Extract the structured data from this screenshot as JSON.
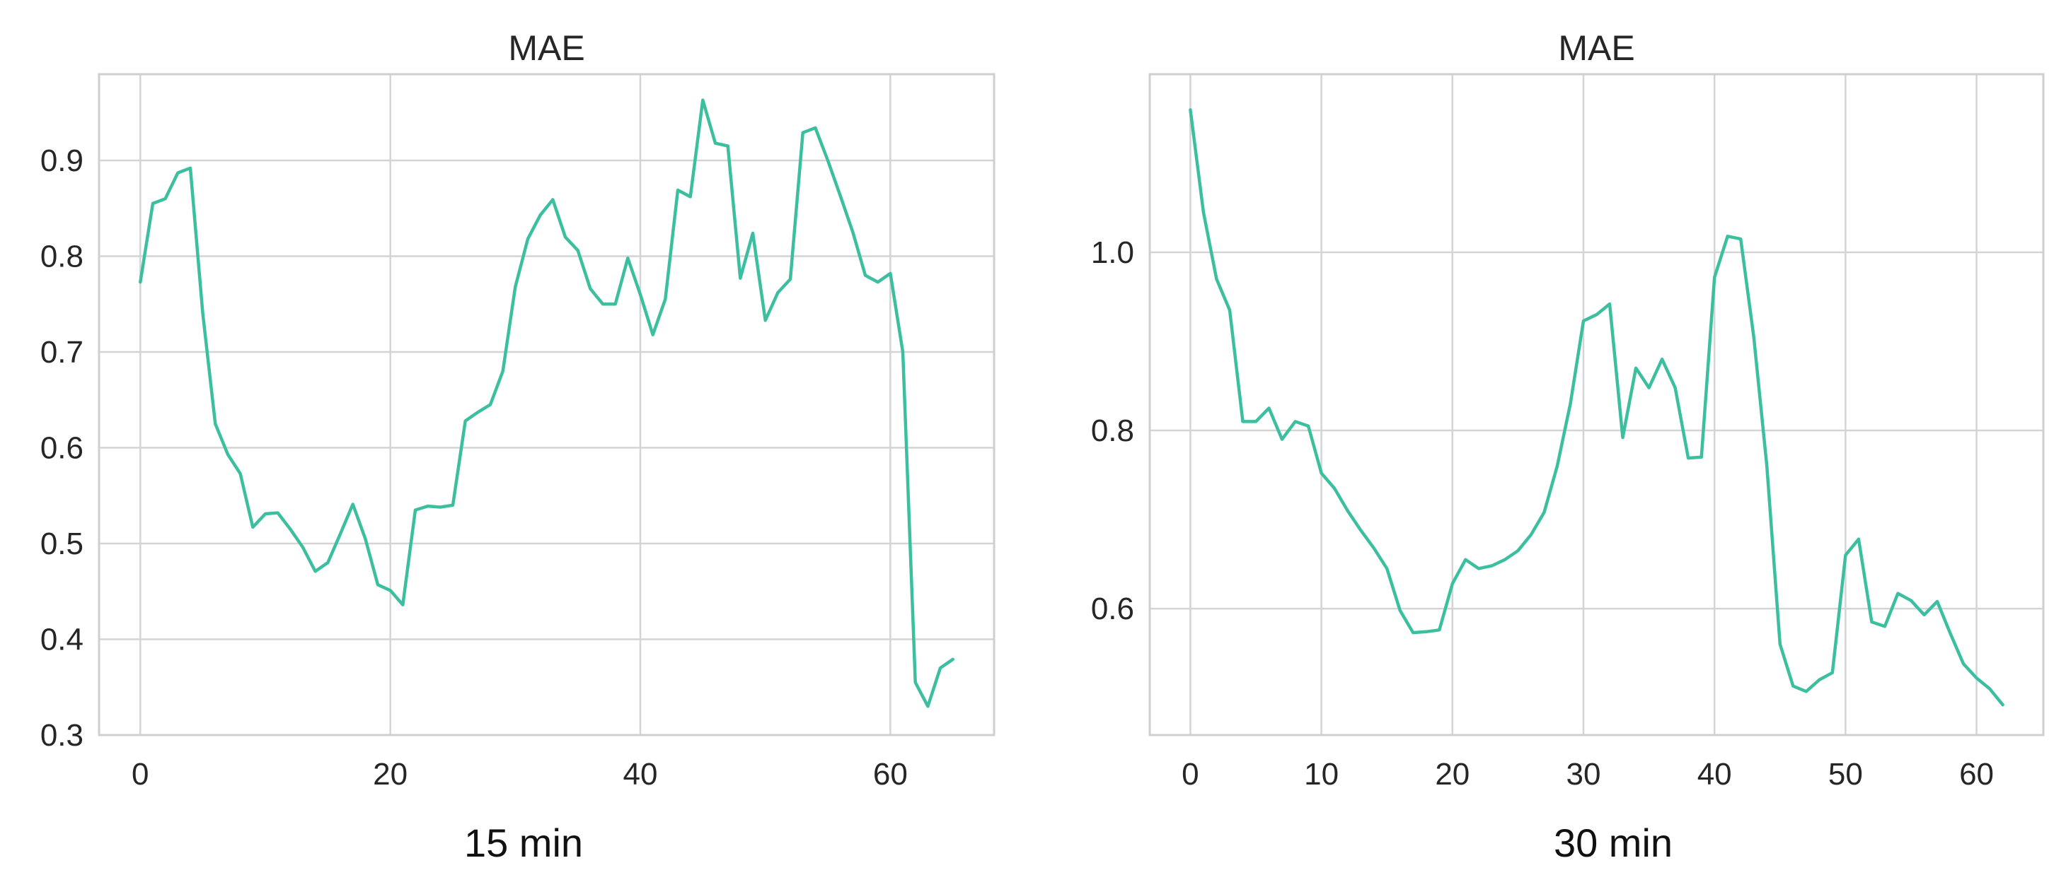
{
  "colors": {
    "line": "#3cbf9f",
    "grid": "#d4d4d4",
    "frame": "#cfcfcf",
    "text": "#262626"
  },
  "chart_data": [
    {
      "type": "line",
      "title": "MAE",
      "caption": "15 min",
      "xlabel": "",
      "ylabel": "",
      "xlim": [
        -3.3,
        68.3
      ],
      "ylim": [
        0.3,
        0.99
      ],
      "xticks": [
        0,
        20,
        40,
        60
      ],
      "yticks": [
        0.3,
        0.4,
        0.5,
        0.6,
        0.7,
        0.8,
        0.9
      ],
      "ytick_labels": [
        "0.3",
        "0.4",
        "0.5",
        "0.6",
        "0.7",
        "0.8",
        "0.9"
      ],
      "grid": true,
      "series": [
        {
          "x": [
            0,
            1,
            2,
            3,
            4,
            5,
            6,
            7,
            8,
            9,
            10,
            11,
            12,
            13,
            14,
            15,
            16,
            17,
            18,
            19,
            20,
            21,
            22,
            23,
            24,
            25,
            26,
            27,
            28,
            29,
            30,
            31,
            32,
            33,
            34,
            35,
            36,
            37,
            38,
            39,
            40,
            41,
            42,
            43,
            44,
            45,
            46,
            47,
            48,
            49,
            50,
            51,
            52,
            53,
            54,
            55,
            56,
            57,
            58,
            59,
            60,
            61,
            62,
            63,
            64,
            65
          ],
          "values": [
            0.773,
            0.855,
            0.86,
            0.887,
            0.892,
            0.74,
            0.625,
            0.593,
            0.573,
            0.517,
            0.531,
            0.532,
            0.515,
            0.496,
            0.471,
            0.48,
            0.51,
            0.541,
            0.505,
            0.457,
            0.451,
            0.436,
            0.535,
            0.539,
            0.538,
            0.54,
            0.628,
            0.637,
            0.645,
            0.68,
            0.768,
            0.818,
            0.843,
            0.859,
            0.82,
            0.806,
            0.766,
            0.75,
            0.75,
            0.798,
            0.76,
            0.718,
            0.755,
            0.869,
            0.862,
            0.963,
            0.918,
            0.915,
            0.777,
            0.824,
            0.733,
            0.762,
            0.776,
            0.929,
            0.934,
            0.9,
            0.863,
            0.825,
            0.78,
            0.773,
            0.782,
            0.7,
            0.355,
            0.33,
            0.37,
            0.379
          ]
        }
      ]
    },
    {
      "type": "line",
      "title": "MAE",
      "caption": "30 min",
      "xlabel": "",
      "ylabel": "",
      "xlim": [
        -3.1,
        65.1
      ],
      "ylim": [
        0.458,
        1.2
      ],
      "xticks": [
        0,
        10,
        20,
        30,
        40,
        50,
        60
      ],
      "yticks": [
        0.6,
        0.8,
        1.0
      ],
      "ytick_labels": [
        "0.6",
        "0.8",
        "1.0"
      ],
      "grid": true,
      "series": [
        {
          "x": [
            0,
            1,
            2,
            3,
            4,
            5,
            6,
            7,
            8,
            9,
            10,
            11,
            12,
            13,
            14,
            15,
            16,
            17,
            18,
            19,
            20,
            21,
            22,
            23,
            24,
            25,
            26,
            27,
            28,
            29,
            30,
            31,
            32,
            33,
            34,
            35,
            36,
            37,
            38,
            39,
            40,
            41,
            42,
            43,
            44,
            45,
            46,
            47,
            48,
            49,
            50,
            51,
            52,
            53,
            54,
            55,
            56,
            57,
            58,
            59,
            60,
            61,
            62
          ],
          "values": [
            1.16,
            1.045,
            0.97,
            0.935,
            0.81,
            0.81,
            0.825,
            0.79,
            0.81,
            0.805,
            0.752,
            0.735,
            0.71,
            0.688,
            0.668,
            0.645,
            0.598,
            0.573,
            0.574,
            0.576,
            0.628,
            0.655,
            0.645,
            0.648,
            0.655,
            0.665,
            0.683,
            0.708,
            0.76,
            0.83,
            0.923,
            0.93,
            0.942,
            0.792,
            0.87,
            0.848,
            0.88,
            0.848,
            0.769,
            0.77,
            0.972,
            1.018,
            1.015,
            0.905,
            0.76,
            0.56,
            0.513,
            0.507,
            0.52,
            0.528,
            0.66,
            0.678,
            0.585,
            0.58,
            0.617,
            0.609,
            0.593,
            0.608,
            0.572,
            0.538,
            0.522,
            0.51,
            0.492
          ]
        }
      ]
    }
  ]
}
